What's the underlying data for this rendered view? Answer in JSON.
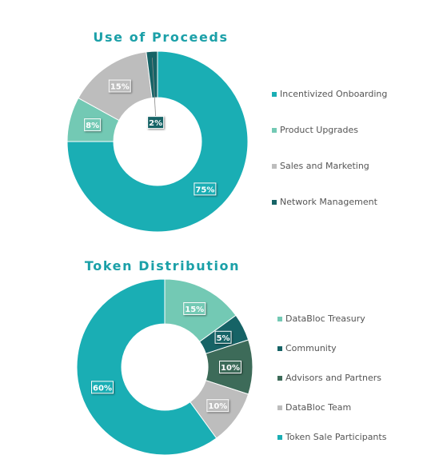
{
  "charts": [
    {
      "title": "Use of Proceeds",
      "chart_data": {
        "type": "pie",
        "donut": true,
        "legend_position": "right",
        "slices": [
          {
            "label": "Incentivized Onboarding",
            "value": 75,
            "display": "75%",
            "color": "#1aaeb4"
          },
          {
            "label": "Product Upgrades",
            "value": 8,
            "display": "8%",
            "color": "#73c9b4"
          },
          {
            "label": "Sales and Marketing",
            "value": 15,
            "display": "15%",
            "color": "#bdbdbd"
          },
          {
            "label": "Network Management",
            "value": 2,
            "display": "2%",
            "color": "#166366"
          }
        ]
      }
    },
    {
      "title": "Token Distribution",
      "chart_data": {
        "type": "pie",
        "donut": true,
        "legend_position": "right",
        "slices": [
          {
            "label": "DataBloc Treasury",
            "value": 15,
            "display": "15%",
            "color": "#73c9b4"
          },
          {
            "label": "Community",
            "value": 5,
            "display": "5%",
            "color": "#166366"
          },
          {
            "label": "Advisors and Partners",
            "value": 10,
            "display": "10%",
            "color": "#3d6b59"
          },
          {
            "label": "DataBloc Team",
            "value": 10,
            "display": "10%",
            "color": "#bdbdbd"
          },
          {
            "label": "Token Sale Participants",
            "value": 60,
            "display": "60%",
            "color": "#1aaeb4"
          }
        ]
      }
    }
  ]
}
